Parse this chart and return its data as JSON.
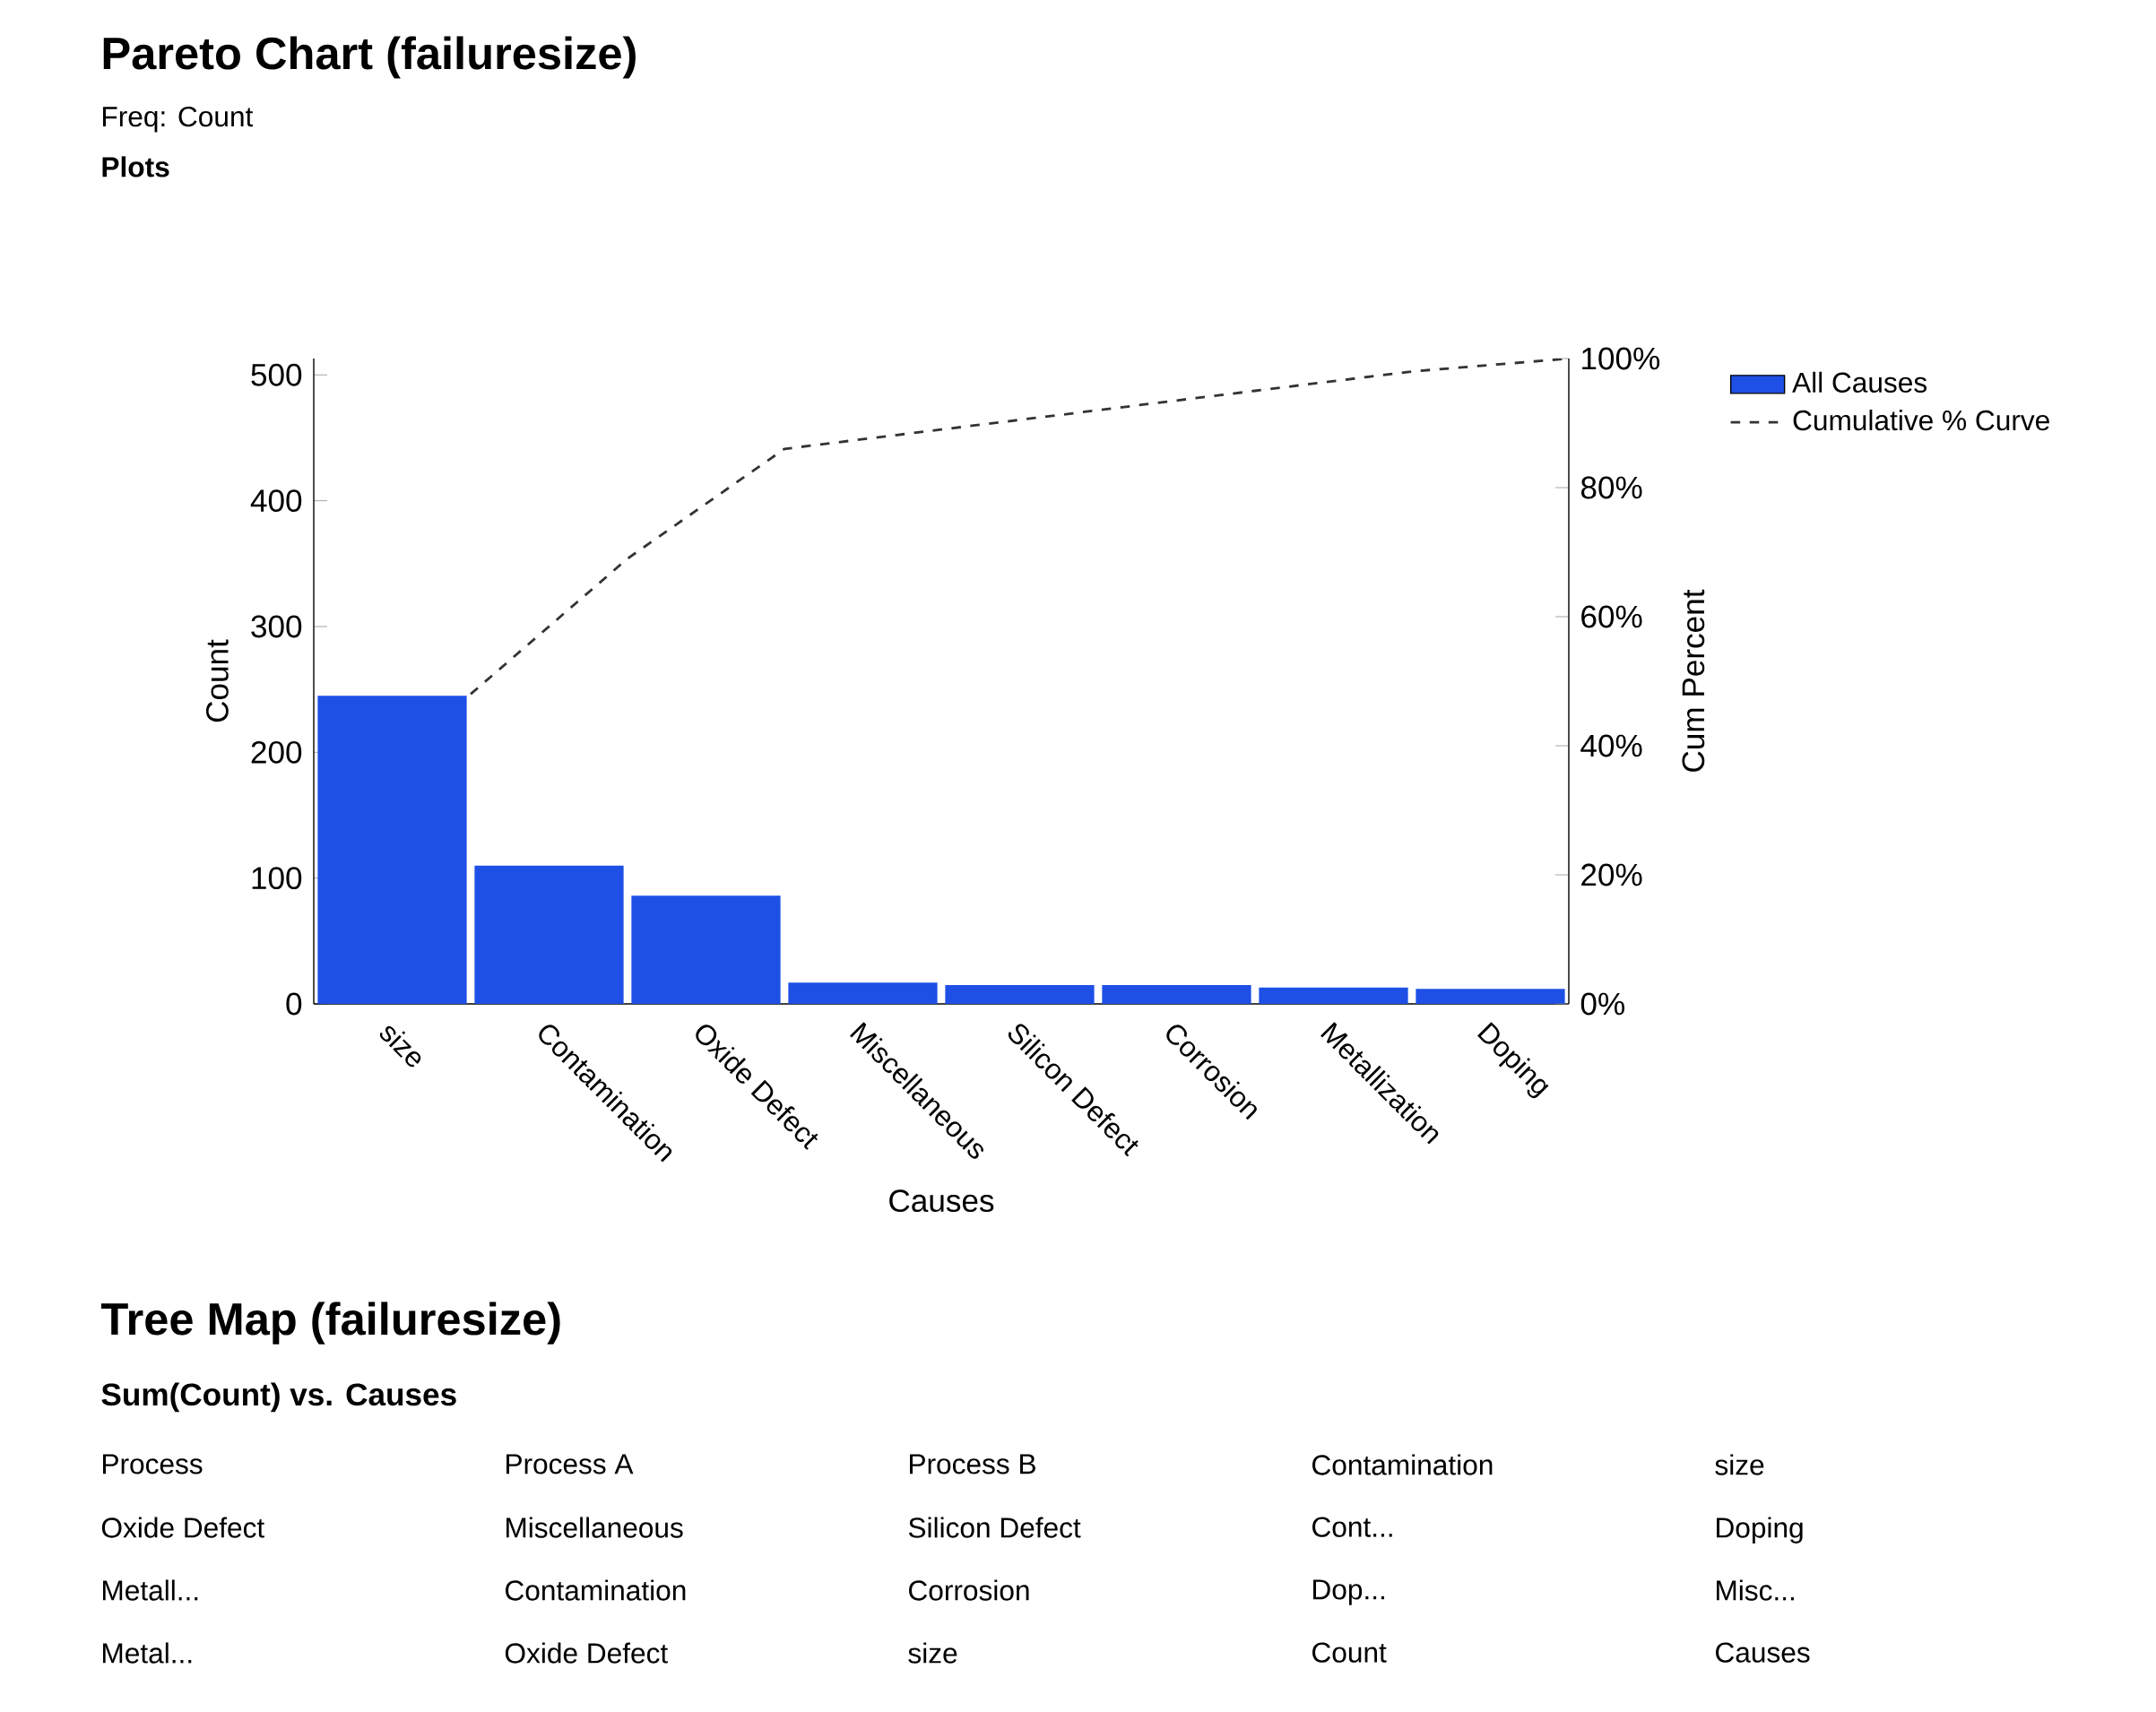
{
  "chart_data": [
    {
      "type": "bar",
      "title": "Pareto Chart (failuresize)",
      "subtitle": "Freq: Count",
      "xlabel": "Causes",
      "ylabel": "Count",
      "y2label": "Cum Percent",
      "annotations": [
        "Plots"
      ],
      "categories": [
        "size",
        "Contamination",
        "Oxide Defect",
        "Miscellaneous",
        "Silicon Defect",
        "Corrosion",
        "Metallization",
        "Doping"
      ],
      "series": [
        {
          "name": "All Causes",
          "color": "#1e50e6",
          "values": [
            245,
            110,
            86,
            17,
            15,
            15,
            13,
            12
          ]
        },
        {
          "name": "Cumulative % Curve",
          "type": "line",
          "axis": "y2",
          "color": "#333333",
          "line_style": "dashed",
          "values": [
            48,
            69,
            86,
            89,
            92,
            95,
            98,
            100
          ]
        }
      ],
      "ylim": [
        0,
        513
      ],
      "yticks": [
        0,
        100,
        200,
        300,
        400,
        500
      ],
      "y2lim": [
        0,
        100
      ],
      "y2ticks": [
        {
          "value": 0,
          "label": "0%"
        },
        {
          "value": 20,
          "label": "20%"
        },
        {
          "value": 40,
          "label": "40%"
        },
        {
          "value": 60,
          "label": "60%"
        },
        {
          "value": 80,
          "label": "80%"
        },
        {
          "value": 100,
          "label": "100%"
        }
      ],
      "legend": "right",
      "grid": false
    },
    {
      "type": "other",
      "title": "Tree Map (failuresize)",
      "subtitle": "Sum(Count) vs. Causes",
      "annotations": [
        "Process",
        "Process A",
        "Process B",
        "Contamination",
        "size",
        "Oxide Defect",
        "Miscellaneous",
        "Silicon Defect",
        "Cont...",
        "Doping",
        "Metall...",
        "Contamination",
        "Corrosion",
        "Dop...",
        "Misc...",
        "Metal...",
        "Oxide Defect",
        "size",
        "Count",
        "Causes"
      ]
    }
  ]
}
